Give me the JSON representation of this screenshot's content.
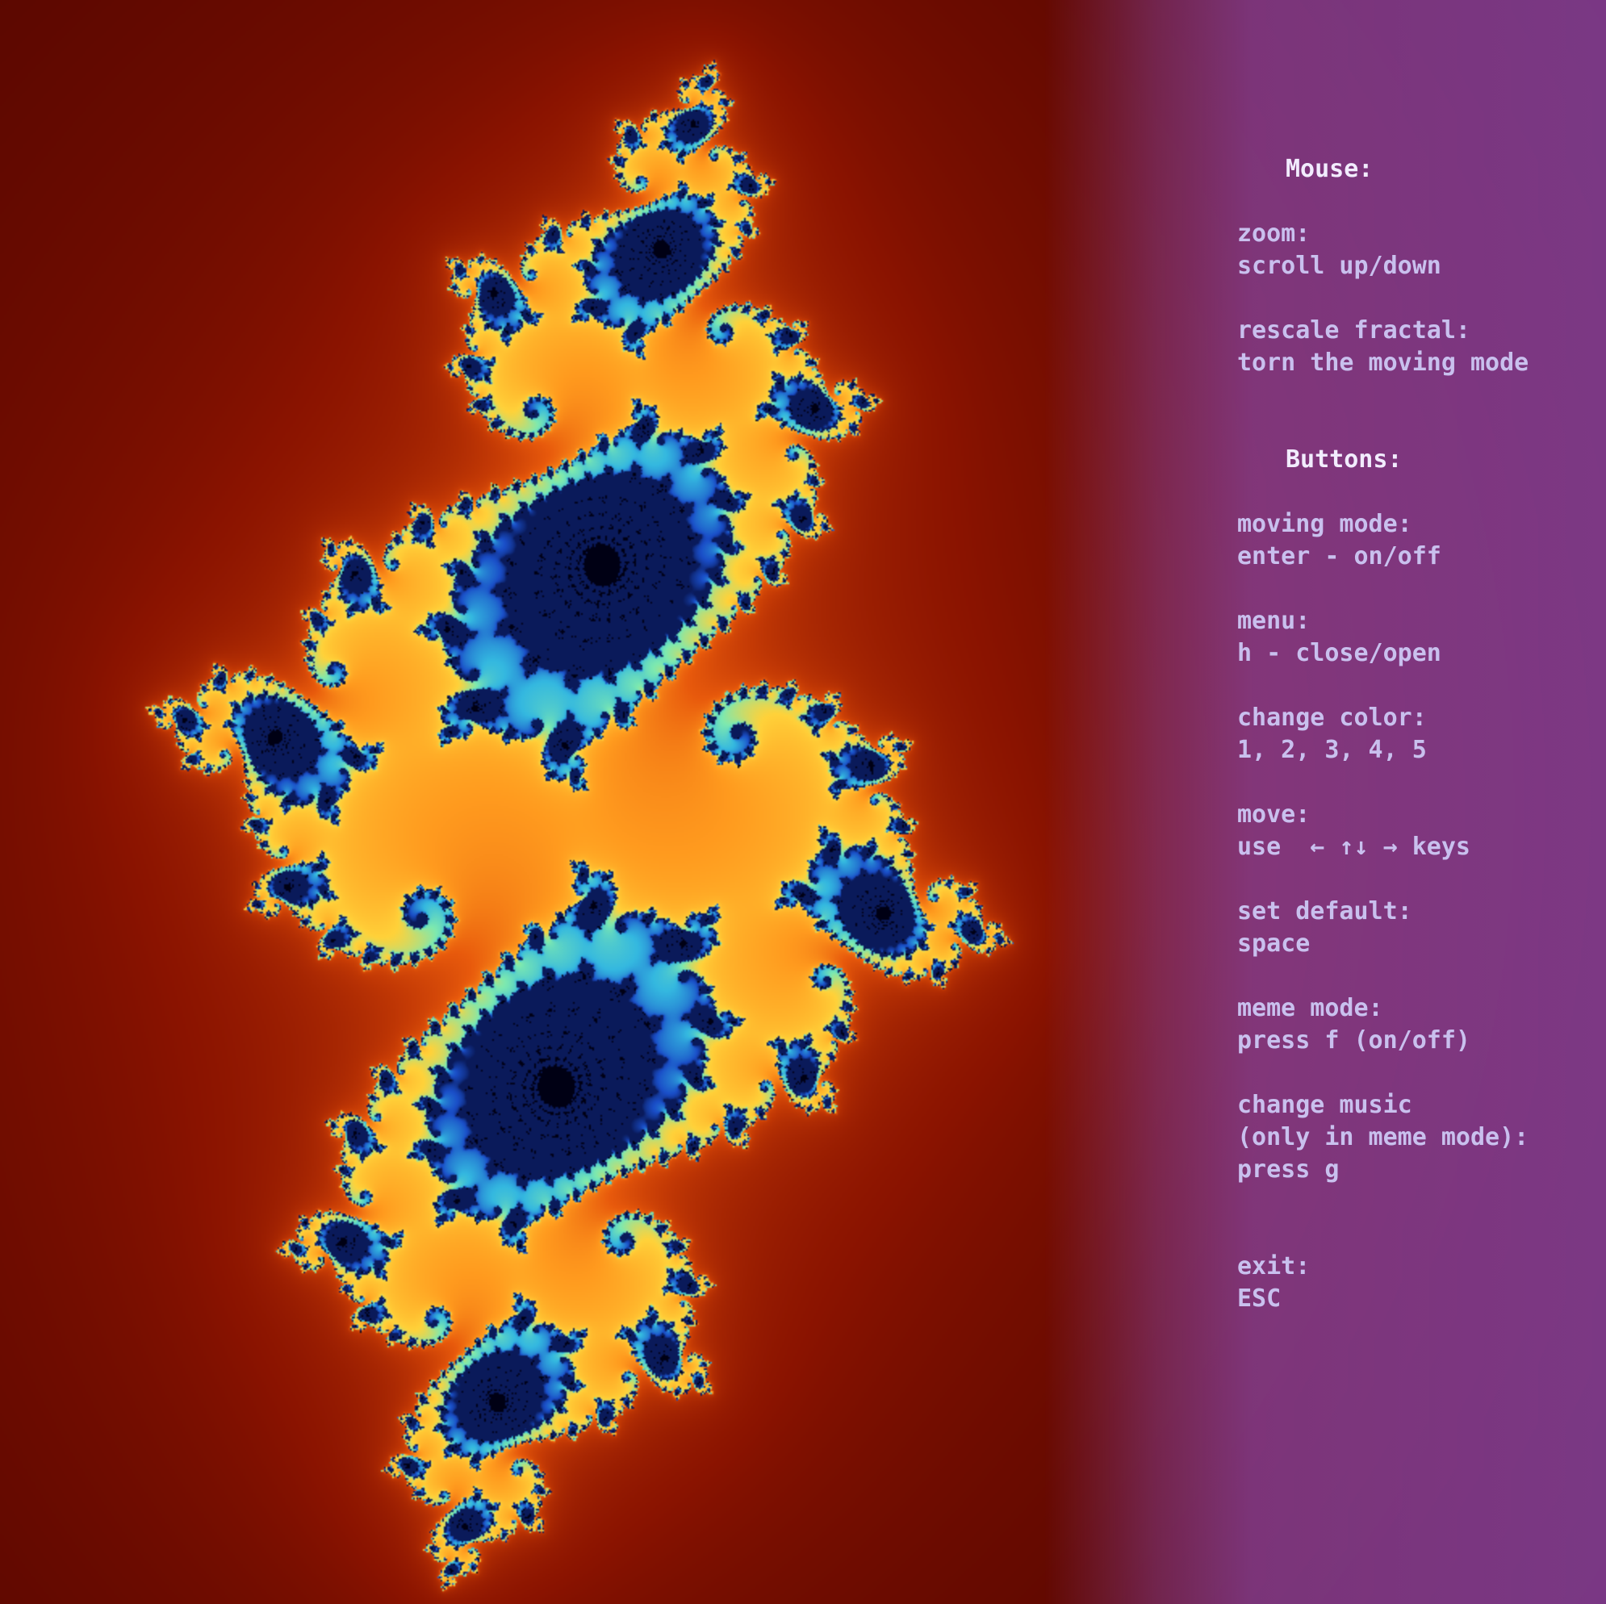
{
  "colors": {
    "fractal_core": "#0a1a5a",
    "fractal_glow": "#7de9b0",
    "fractal_inner": "#ffd23a",
    "fractal_mid": "#e85a0c",
    "fractal_outer": "#8a1300",
    "background_dark": "#250000",
    "menu_text": "#c9c0ee",
    "menu_title": "#f2ecff",
    "menu_tint": "#9a5ad8"
  },
  "help": {
    "mouse_title": "Mouse:",
    "mouse": [
      {
        "label": "zoom:",
        "value": "scroll up/down"
      },
      {
        "label": "rescale fractal:",
        "value": "torn the moving mode"
      }
    ],
    "buttons_title": "Buttons:",
    "buttons": [
      {
        "label": "moving mode:",
        "value": "enter - on/off"
      },
      {
        "label": "menu:",
        "value": "h - close/open"
      },
      {
        "label": "change color:",
        "value": "1, 2, 3, 4, 5"
      },
      {
        "label": "move:",
        "value": "use  ← ↑↓ → keys"
      },
      {
        "label": "set default:",
        "value": "space"
      },
      {
        "label": "meme mode:",
        "value": "press f (on/off)"
      },
      {
        "label": "change music",
        "value": "(only in meme mode):",
        "value2": "press g"
      }
    ],
    "exit": {
      "label": "exit:",
      "value": "ESC"
    }
  }
}
